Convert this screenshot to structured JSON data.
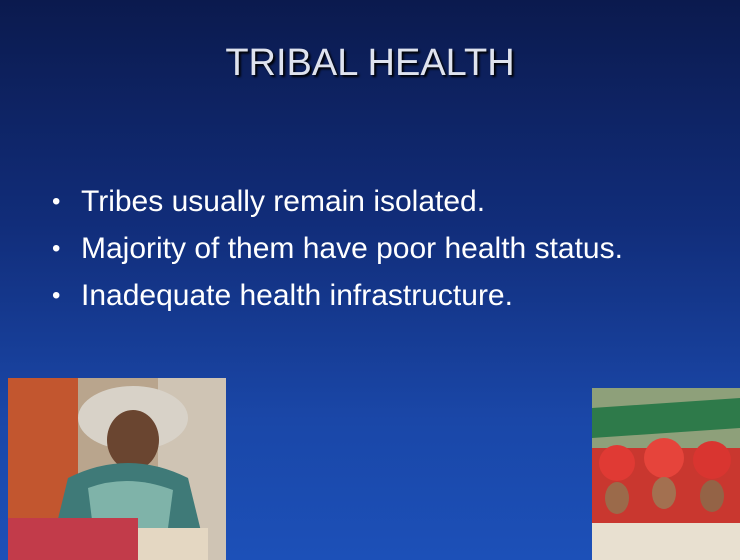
{
  "slide": {
    "title": "TRIBAL HEALTH",
    "bullets": [
      "Tribes usually remain isolated.",
      "Majority of them have poor health status.",
      "Inadequate health infrastructure."
    ]
  }
}
